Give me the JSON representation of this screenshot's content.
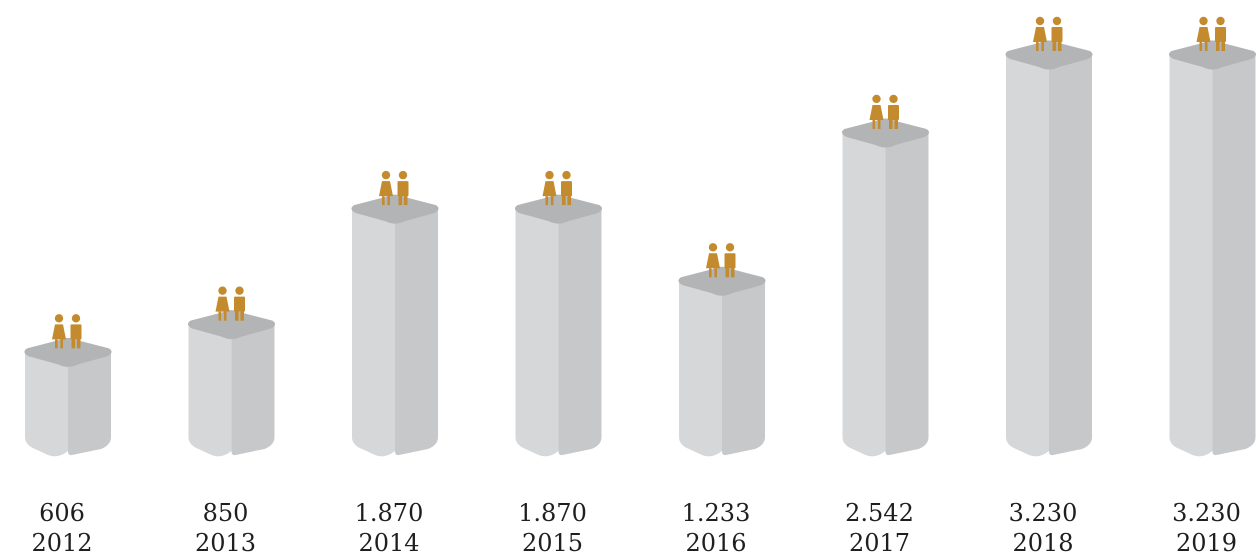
{
  "chart_data": {
    "type": "bar",
    "categories": [
      "2012",
      "2013",
      "2014",
      "2015",
      "2016",
      "2017",
      "2018",
      "2019"
    ],
    "values": [
      606,
      850,
      1870,
      1870,
      1233,
      2542,
      3230,
      3230
    ],
    "value_labels": [
      "606",
      "850",
      "1.870",
      "1.870",
      "1.233",
      "2.542",
      "3.230",
      "3.230"
    ],
    "title": "",
    "xlabel": "",
    "ylabel": "",
    "ylim": [
      0,
      3400
    ],
    "grid": false,
    "legend": "none",
    "marker_icon": "couple-icon"
  },
  "colors": {
    "pillar_front": "#d6d7d9",
    "pillar_side": "#c7c8ca",
    "pillar_top": "#b3b4b6",
    "icon": "#c38b2d",
    "text": "#1f1f1f"
  }
}
